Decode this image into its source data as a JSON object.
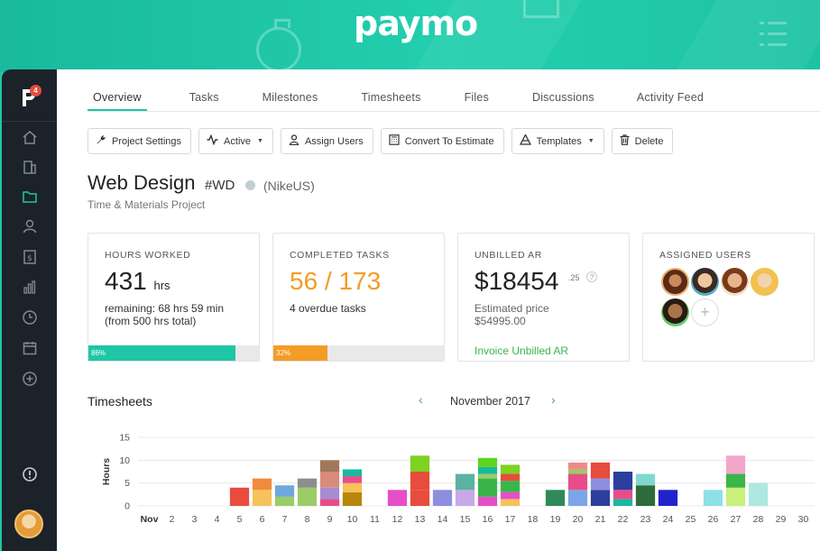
{
  "brand": {
    "logo_text": "paymo"
  },
  "sidebar": {
    "badge_count": "4",
    "items": [
      {
        "icon": "home-icon"
      },
      {
        "icon": "building-icon"
      },
      {
        "icon": "folder-icon",
        "active": true
      },
      {
        "icon": "user-icon"
      },
      {
        "icon": "invoice-icon"
      },
      {
        "icon": "bar-chart-icon"
      },
      {
        "icon": "clock-icon"
      },
      {
        "icon": "calendar-icon"
      },
      {
        "icon": "plus-circle-icon"
      },
      {
        "icon": "info-icon"
      }
    ]
  },
  "tabs": [
    "Overview",
    "Tasks",
    "Milestones",
    "Timesheets",
    "Files",
    "Discussions",
    "Activity Feed"
  ],
  "toolbar": {
    "project_settings": "Project Settings",
    "active": "Active",
    "assign_users": "Assign Users",
    "convert": "Convert To Estimate",
    "templates": "Templates",
    "delete": "Delete"
  },
  "project": {
    "title": "Web Design",
    "code": "#WD",
    "client": "(NikeUS)",
    "type": "Time & Materials Project"
  },
  "cards": {
    "hours": {
      "label": "HOURS WORKED",
      "value": "431",
      "unit": "hrs",
      "sub1": "remaining: 68 hrs 59 min",
      "sub2": "(from 500 hrs total)",
      "progress_label": "86%",
      "progress": 0.86,
      "color": "#1fc6a6"
    },
    "tasks": {
      "label": "COMPLETED TASKS",
      "value": "56 / 173",
      "sub1": "4 overdue tasks",
      "progress_label": "32%",
      "progress": 0.32,
      "color": "#f39c26"
    },
    "unbilled": {
      "label": "UNBILLED AR",
      "value": "$18454",
      "cents": ".25",
      "help": "?",
      "sub1": "Estimated price",
      "sub2": "$54995.00",
      "link": "Invoice Unbilled AR"
    },
    "users": {
      "label": "ASSIGNED USERS",
      "add": "+"
    }
  },
  "timesheets": {
    "title": "Timesheets",
    "month": "November 2017"
  },
  "chart_data": {
    "type": "bar",
    "stacked": true,
    "ylabel": "Hours",
    "ylim": [
      0,
      15
    ],
    "yticks": [
      "0",
      "5",
      "10",
      "15"
    ],
    "categories": [
      "Nov",
      "2",
      "3",
      "4",
      "5",
      "6",
      "7",
      "8",
      "9",
      "10",
      "11",
      "12",
      "13",
      "14",
      "15",
      "16",
      "17",
      "18",
      "19",
      "20",
      "21",
      "22",
      "23",
      "24",
      "25",
      "26",
      "27",
      "28",
      "29",
      "30"
    ],
    "stacks": [
      [],
      [],
      [],
      [],
      [
        {
          "v": 4,
          "c": "#e74c3c"
        }
      ],
      [
        {
          "v": 3.5,
          "c": "#f7c25a"
        },
        {
          "v": 2.5,
          "c": "#f08a3c"
        }
      ],
      [
        {
          "v": 2,
          "c": "#9ccc65"
        },
        {
          "v": 2.5,
          "c": "#6fa8dc"
        }
      ],
      [
        {
          "v": 4,
          "c": "#9ccc65"
        },
        {
          "v": 2,
          "c": "#8d8d8d"
        }
      ],
      [
        {
          "v": 1.5,
          "c": "#e84d8a"
        },
        {
          "v": 2.5,
          "c": "#a78bd0"
        },
        {
          "v": 3.5,
          "c": "#d98b7a"
        },
        {
          "v": 2.5,
          "c": "#a0785a"
        }
      ],
      [
        {
          "v": 3,
          "c": "#b8860b"
        },
        {
          "v": 2,
          "c": "#f7c25a"
        },
        {
          "v": 1.5,
          "c": "#e84d8a"
        },
        {
          "v": 1.5,
          "c": "#1ab99d"
        }
      ],
      [],
      [
        {
          "v": 3.5,
          "c": "#e84dc8"
        }
      ],
      [
        {
          "v": 3.5,
          "c": "#e74c3c"
        },
        {
          "v": 4,
          "c": "#e74c3c"
        },
        {
          "v": 3.5,
          "c": "#7cd321"
        }
      ],
      [
        {
          "v": 3.5,
          "c": "#8e8ee0"
        }
      ],
      [
        {
          "v": 3.5,
          "c": "#c9a8e8"
        },
        {
          "v": 3.5,
          "c": "#5ab3a0"
        }
      ],
      [
        {
          "v": 2,
          "c": "#e84dc8"
        },
        {
          "v": 4,
          "c": "#3ab54a"
        },
        {
          "v": 1,
          "c": "#9ccc65"
        },
        {
          "v": 1.5,
          "c": "#1ab99d"
        },
        {
          "v": 2,
          "c": "#5fd420"
        }
      ],
      [
        {
          "v": 1.5,
          "c": "#f7c25a"
        },
        {
          "v": 1.5,
          "c": "#e84dc8"
        },
        {
          "v": 2.5,
          "c": "#3ab54a"
        },
        {
          "v": 1.5,
          "c": "#e74c3c"
        },
        {
          "v": 2,
          "c": "#7cd321"
        }
      ],
      [],
      [
        {
          "v": 3.5,
          "c": "#2e8b57"
        }
      ],
      [
        {
          "v": 3.5,
          "c": "#7aa6e8"
        },
        {
          "v": 3.5,
          "c": "#e84d8a"
        },
        {
          "v": 1,
          "c": "#9ccc65"
        },
        {
          "v": 1.5,
          "c": "#f08a8a"
        }
      ],
      [
        {
          "v": 3.5,
          "c": "#2c3e9e"
        },
        {
          "v": 2.5,
          "c": "#8e8ee0"
        },
        {
          "v": 2,
          "c": "#e74c3c"
        },
        {
          "v": 1.5,
          "c": "#e74c3c"
        }
      ],
      [
        {
          "v": 1.5,
          "c": "#1ab99d"
        },
        {
          "v": 2,
          "c": "#e84d8a"
        },
        {
          "v": 4,
          "c": "#2c3e9e"
        }
      ],
      [
        {
          "v": 4.5,
          "c": "#2e6b3a"
        },
        {
          "v": 2.5,
          "c": "#7fd8d0"
        }
      ],
      [
        {
          "v": 3.5,
          "c": "#2222cc"
        }
      ],
      [],
      [
        {
          "v": 3.5,
          "c": "#8ee0e8"
        }
      ],
      [
        {
          "v": 4,
          "c": "#c8f07a"
        },
        {
          "v": 3,
          "c": "#3ab54a"
        },
        {
          "v": 4,
          "c": "#f2a6c8"
        }
      ],
      [
        {
          "v": 5,
          "c": "#aee8e0"
        }
      ],
      [],
      []
    ]
  }
}
